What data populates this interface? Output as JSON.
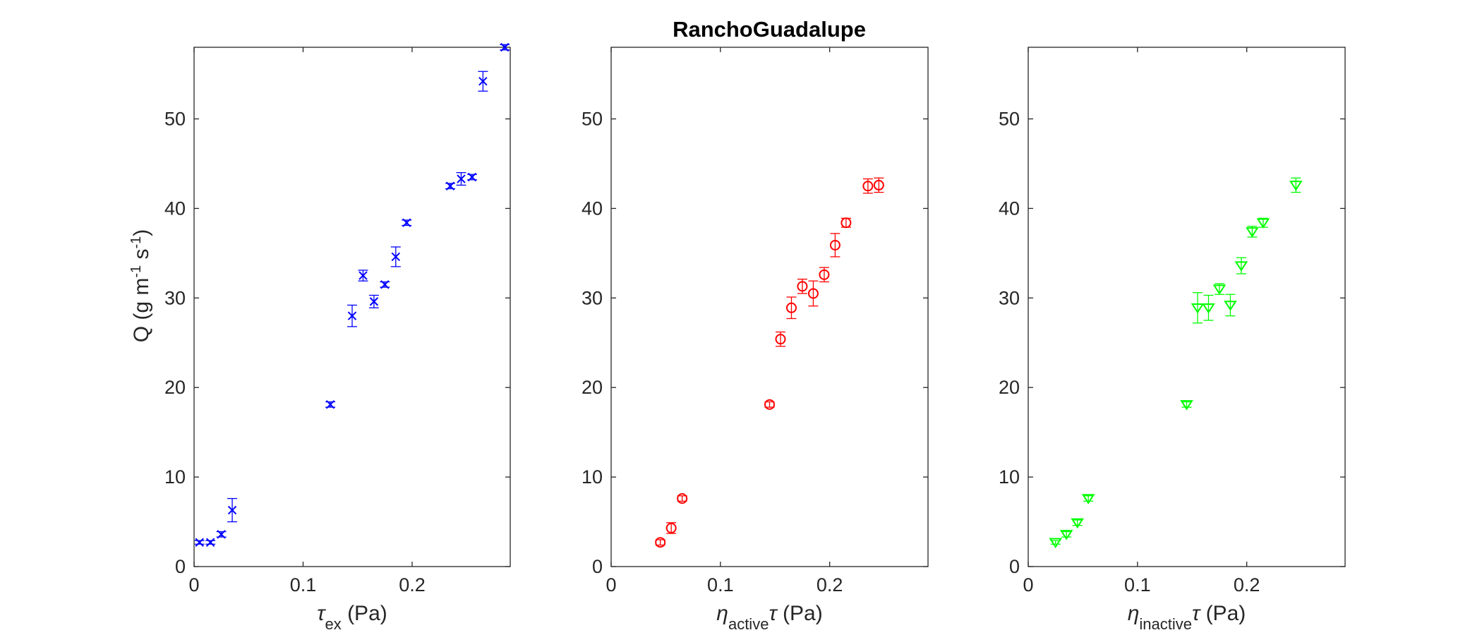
{
  "title": "RanchoGuadalupe",
  "ylabel": {
    "main": "Q (g m",
    "sup1": "-1",
    "mid": " s",
    "sup2": "-1",
    "end": ")"
  },
  "chart_data": [
    {
      "type": "scatter",
      "marker": "x",
      "color": "#0000ff",
      "xlabel": {
        "sym": "τ",
        "sub": "ex",
        "rest": " (Pa)"
      },
      "xlim": [
        0,
        0.29
      ],
      "ylim": [
        0,
        58
      ],
      "xticks": [
        0,
        0.1,
        0.2
      ],
      "xtick_labels": [
        "0",
        "0.1",
        "0.2"
      ],
      "yticks": [
        0,
        10,
        20,
        30,
        40,
        50
      ],
      "ytick_labels": [
        "0",
        "10",
        "20",
        "30",
        "40",
        "50"
      ],
      "points": [
        {
          "x": 0.005,
          "y": 2.7,
          "err": 0.2
        },
        {
          "x": 0.015,
          "y": 2.7,
          "err": 0.2
        },
        {
          "x": 0.025,
          "y": 3.6,
          "err": 0.3
        },
        {
          "x": 0.035,
          "y": 6.3,
          "err": 1.3
        },
        {
          "x": 0.125,
          "y": 18.1,
          "err": 0.3
        },
        {
          "x": 0.145,
          "y": 28.0,
          "err": 1.2
        },
        {
          "x": 0.155,
          "y": 32.5,
          "err": 0.6
        },
        {
          "x": 0.165,
          "y": 29.6,
          "err": 0.7
        },
        {
          "x": 0.175,
          "y": 31.5,
          "err": 0.3
        },
        {
          "x": 0.185,
          "y": 34.6,
          "err": 1.1
        },
        {
          "x": 0.195,
          "y": 38.4,
          "err": 0.3
        },
        {
          "x": 0.235,
          "y": 42.5,
          "err": 0.3
        },
        {
          "x": 0.245,
          "y": 43.3,
          "err": 0.7
        },
        {
          "x": 0.255,
          "y": 43.5,
          "err": 0.3
        },
        {
          "x": 0.265,
          "y": 54.2,
          "err": 1.1
        },
        {
          "x": 0.285,
          "y": 58.0,
          "err": 0.3
        }
      ]
    },
    {
      "type": "scatter",
      "marker": "circle",
      "color": "#ff0000",
      "xlabel": {
        "sym": "η",
        "sub": "active",
        "rest": "τ (Pa)"
      },
      "xlim": [
        0,
        0.29
      ],
      "ylim": [
        0,
        58
      ],
      "xticks": [
        0,
        0.1,
        0.2
      ],
      "xtick_labels": [
        "0",
        "0.1",
        "0.2"
      ],
      "yticks": [
        0,
        10,
        20,
        30,
        40,
        50
      ],
      "ytick_labels": [
        "0",
        "10",
        "20",
        "30",
        "40",
        "50"
      ],
      "points": [
        {
          "x": 0.045,
          "y": 2.7,
          "err": 0.3
        },
        {
          "x": 0.055,
          "y": 4.3,
          "err": 0.6
        },
        {
          "x": 0.065,
          "y": 7.6,
          "err": 0.3
        },
        {
          "x": 0.145,
          "y": 18.1,
          "err": 0.3
        },
        {
          "x": 0.155,
          "y": 25.4,
          "err": 0.8
        },
        {
          "x": 0.165,
          "y": 28.9,
          "err": 1.2
        },
        {
          "x": 0.175,
          "y": 31.3,
          "err": 0.8
        },
        {
          "x": 0.185,
          "y": 30.5,
          "err": 1.4
        },
        {
          "x": 0.195,
          "y": 32.6,
          "err": 0.8
        },
        {
          "x": 0.205,
          "y": 35.9,
          "err": 1.3
        },
        {
          "x": 0.215,
          "y": 38.4,
          "err": 0.5
        },
        {
          "x": 0.235,
          "y": 42.5,
          "err": 0.8
        },
        {
          "x": 0.245,
          "y": 42.6,
          "err": 0.8
        }
      ]
    },
    {
      "type": "scatter",
      "marker": "triangle-down",
      "color": "#00ff00",
      "xlabel": {
        "sym": "η",
        "sub": "inactive",
        "rest": "τ (Pa)"
      },
      "xlim": [
        0,
        0.29
      ],
      "ylim": [
        0,
        58
      ],
      "xticks": [
        0,
        0.1,
        0.2
      ],
      "xtick_labels": [
        "0",
        "0.1",
        "0.2"
      ],
      "yticks": [
        0,
        10,
        20,
        30,
        40,
        50
      ],
      "ytick_labels": [
        "0",
        "10",
        "20",
        "30",
        "40",
        "50"
      ],
      "points": [
        {
          "x": 0.025,
          "y": 2.7,
          "err": 0.2
        },
        {
          "x": 0.035,
          "y": 3.6,
          "err": 0.3
        },
        {
          "x": 0.045,
          "y": 4.9,
          "err": 0.3
        },
        {
          "x": 0.055,
          "y": 7.6,
          "err": 0.3
        },
        {
          "x": 0.145,
          "y": 18.1,
          "err": 0.3
        },
        {
          "x": 0.155,
          "y": 28.9,
          "err": 1.7
        },
        {
          "x": 0.165,
          "y": 28.9,
          "err": 1.4
        },
        {
          "x": 0.175,
          "y": 31.0,
          "err": 0.6
        },
        {
          "x": 0.185,
          "y": 29.2,
          "err": 1.2
        },
        {
          "x": 0.195,
          "y": 33.6,
          "err": 0.9
        },
        {
          "x": 0.205,
          "y": 37.4,
          "err": 0.6
        },
        {
          "x": 0.215,
          "y": 38.4,
          "err": 0.5
        },
        {
          "x": 0.245,
          "y": 42.6,
          "err": 0.8
        }
      ]
    }
  ]
}
